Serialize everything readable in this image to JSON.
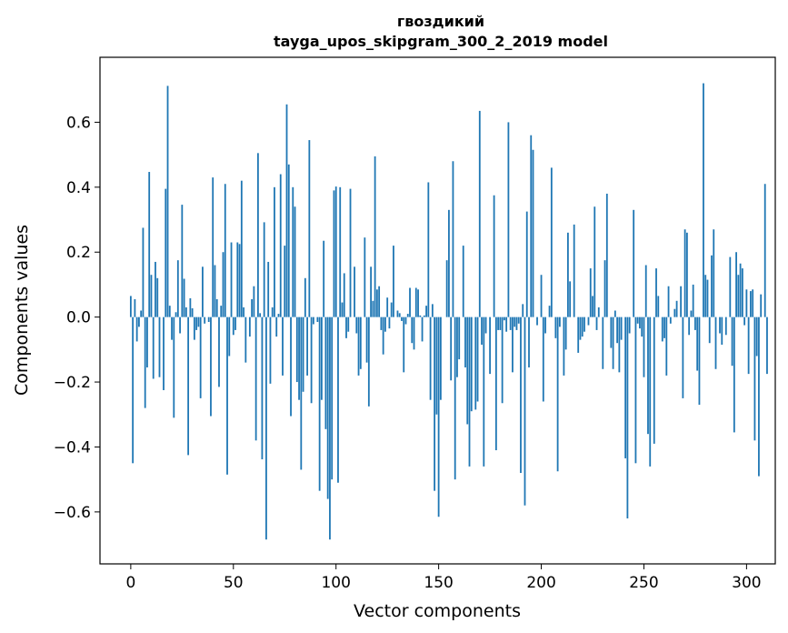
{
  "chart_data": {
    "type": "bar",
    "title_line1": "гвоздикий",
    "title_line2": "tayga_upos_skipgram_300_2_2019 model",
    "xlabel": "Vector components",
    "ylabel": "Components values",
    "xlim": [
      -15,
      314
    ],
    "ylim": [
      -0.76,
      0.8
    ],
    "xticks": [
      0,
      50,
      100,
      150,
      200,
      250,
      300
    ],
    "xtick_labels": [
      "0",
      "50",
      "100",
      "150",
      "200",
      "250",
      "300"
    ],
    "yticks": [
      -0.6,
      -0.4,
      -0.2,
      0.0,
      0.2,
      0.4,
      0.6
    ],
    "ytick_labels": [
      "−0.6",
      "−0.4",
      "−0.2",
      "0.0",
      "0.2",
      "0.4",
      "0.6"
    ],
    "bar_color": "#1f77b4",
    "grid": false,
    "values": [
      0.065,
      -0.45,
      0.055,
      -0.075,
      -0.03,
      0.02,
      0.275,
      -0.28,
      -0.155,
      0.447,
      0.13,
      -0.19,
      0.17,
      0.12,
      -0.185,
      0.0,
      -0.225,
      0.395,
      0.712,
      0.035,
      -0.07,
      -0.31,
      0.015,
      0.175,
      -0.05,
      0.346,
      0.118,
      0.03,
      -0.425,
      0.058,
      0.027,
      -0.07,
      -0.04,
      -0.03,
      -0.25,
      0.155,
      -0.02,
      0.0,
      -0.015,
      -0.305,
      0.43,
      0.16,
      0.055,
      -0.215,
      0.035,
      0.2,
      0.41,
      -0.485,
      -0.12,
      0.23,
      -0.055,
      -0.04,
      0.23,
      0.225,
      0.42,
      0.03,
      -0.14,
      0.0,
      -0.06,
      0.055,
      0.095,
      -0.38,
      0.505,
      0.012,
      -0.438,
      0.292,
      -0.685,
      0.17,
      -0.205,
      0.03,
      0.4,
      -0.06,
      0.01,
      0.44,
      -0.18,
      0.22,
      0.655,
      0.47,
      -0.305,
      0.4,
      0.34,
      -0.2,
      -0.255,
      -0.47,
      -0.23,
      0.12,
      -0.18,
      0.545,
      -0.265,
      -0.022,
      0.0,
      -0.015,
      -0.535,
      -0.255,
      0.235,
      -0.345,
      -0.56,
      -0.685,
      -0.5,
      0.39,
      0.402,
      -0.51,
      0.4,
      0.045,
      0.135,
      -0.065,
      -0.045,
      0.395,
      0.0,
      0.155,
      -0.05,
      -0.18,
      -0.16,
      0.0,
      0.245,
      -0.14,
      -0.275,
      0.155,
      0.05,
      0.495,
      0.085,
      0.095,
      -0.04,
      -0.115,
      -0.045,
      0.06,
      -0.035,
      0.045,
      0.22,
      0.0,
      0.02,
      0.012,
      -0.012,
      -0.17,
      -0.022,
      0.01,
      0.09,
      -0.08,
      -0.1,
      0.09,
      0.085,
      0.005,
      -0.075,
      0.005,
      0.035,
      0.415,
      -0.255,
      0.04,
      -0.535,
      -0.3,
      -0.615,
      -0.255,
      0.0,
      0.0,
      0.175,
      0.33,
      -0.195,
      0.48,
      -0.5,
      -0.185,
      -0.13,
      0.0,
      0.22,
      -0.155,
      -0.33,
      -0.46,
      -0.29,
      0.0,
      -0.285,
      -0.26,
      0.635,
      -0.085,
      -0.46,
      -0.05,
      0.0,
      -0.175,
      0.0,
      0.375,
      -0.41,
      -0.04,
      -0.04,
      -0.265,
      -0.01,
      -0.045,
      0.6,
      -0.04,
      -0.17,
      -0.03,
      -0.04,
      -0.02,
      -0.48,
      0.04,
      -0.58,
      0.325,
      -0.155,
      0.56,
      0.515,
      0.0,
      -0.025,
      0.0,
      0.13,
      -0.26,
      -0.05,
      0.0,
      0.035,
      0.46,
      0.0,
      -0.065,
      -0.475,
      -0.03,
      0.0,
      -0.18,
      -0.1,
      0.26,
      0.11,
      0.0,
      0.285,
      0.0,
      -0.11,
      -0.07,
      -0.06,
      -0.045,
      0.0,
      -0.025,
      0.15,
      0.065,
      0.34,
      -0.04,
      0.03,
      0.0,
      -0.16,
      0.175,
      0.38,
      0.0,
      -0.095,
      -0.16,
      0.02,
      -0.08,
      -0.17,
      -0.07,
      0.0,
      -0.435,
      -0.62,
      -0.05,
      0.0,
      0.33,
      -0.45,
      -0.02,
      -0.035,
      -0.06,
      -0.185,
      0.16,
      -0.36,
      -0.46,
      0.0,
      -0.39,
      0.15,
      0.065,
      0.0,
      -0.075,
      -0.065,
      -0.18,
      0.095,
      -0.02,
      0.0,
      0.025,
      0.05,
      0.0,
      0.095,
      -0.25,
      0.27,
      0.26,
      -0.055,
      0.02,
      0.1,
      -0.04,
      -0.165,
      -0.27,
      0.0,
      0.72,
      0.13,
      0.115,
      -0.08,
      0.19,
      0.27,
      -0.16,
      0.0,
      -0.05,
      -0.085,
      0.0,
      -0.055,
      0.0,
      0.185,
      -0.15,
      -0.355,
      0.2,
      0.13,
      0.165,
      0.15,
      -0.025,
      0.085,
      -0.175,
      0.08,
      0.085,
      -0.38,
      -0.12,
      -0.49,
      0.07,
      0.0,
      0.41,
      -0.175
    ]
  }
}
